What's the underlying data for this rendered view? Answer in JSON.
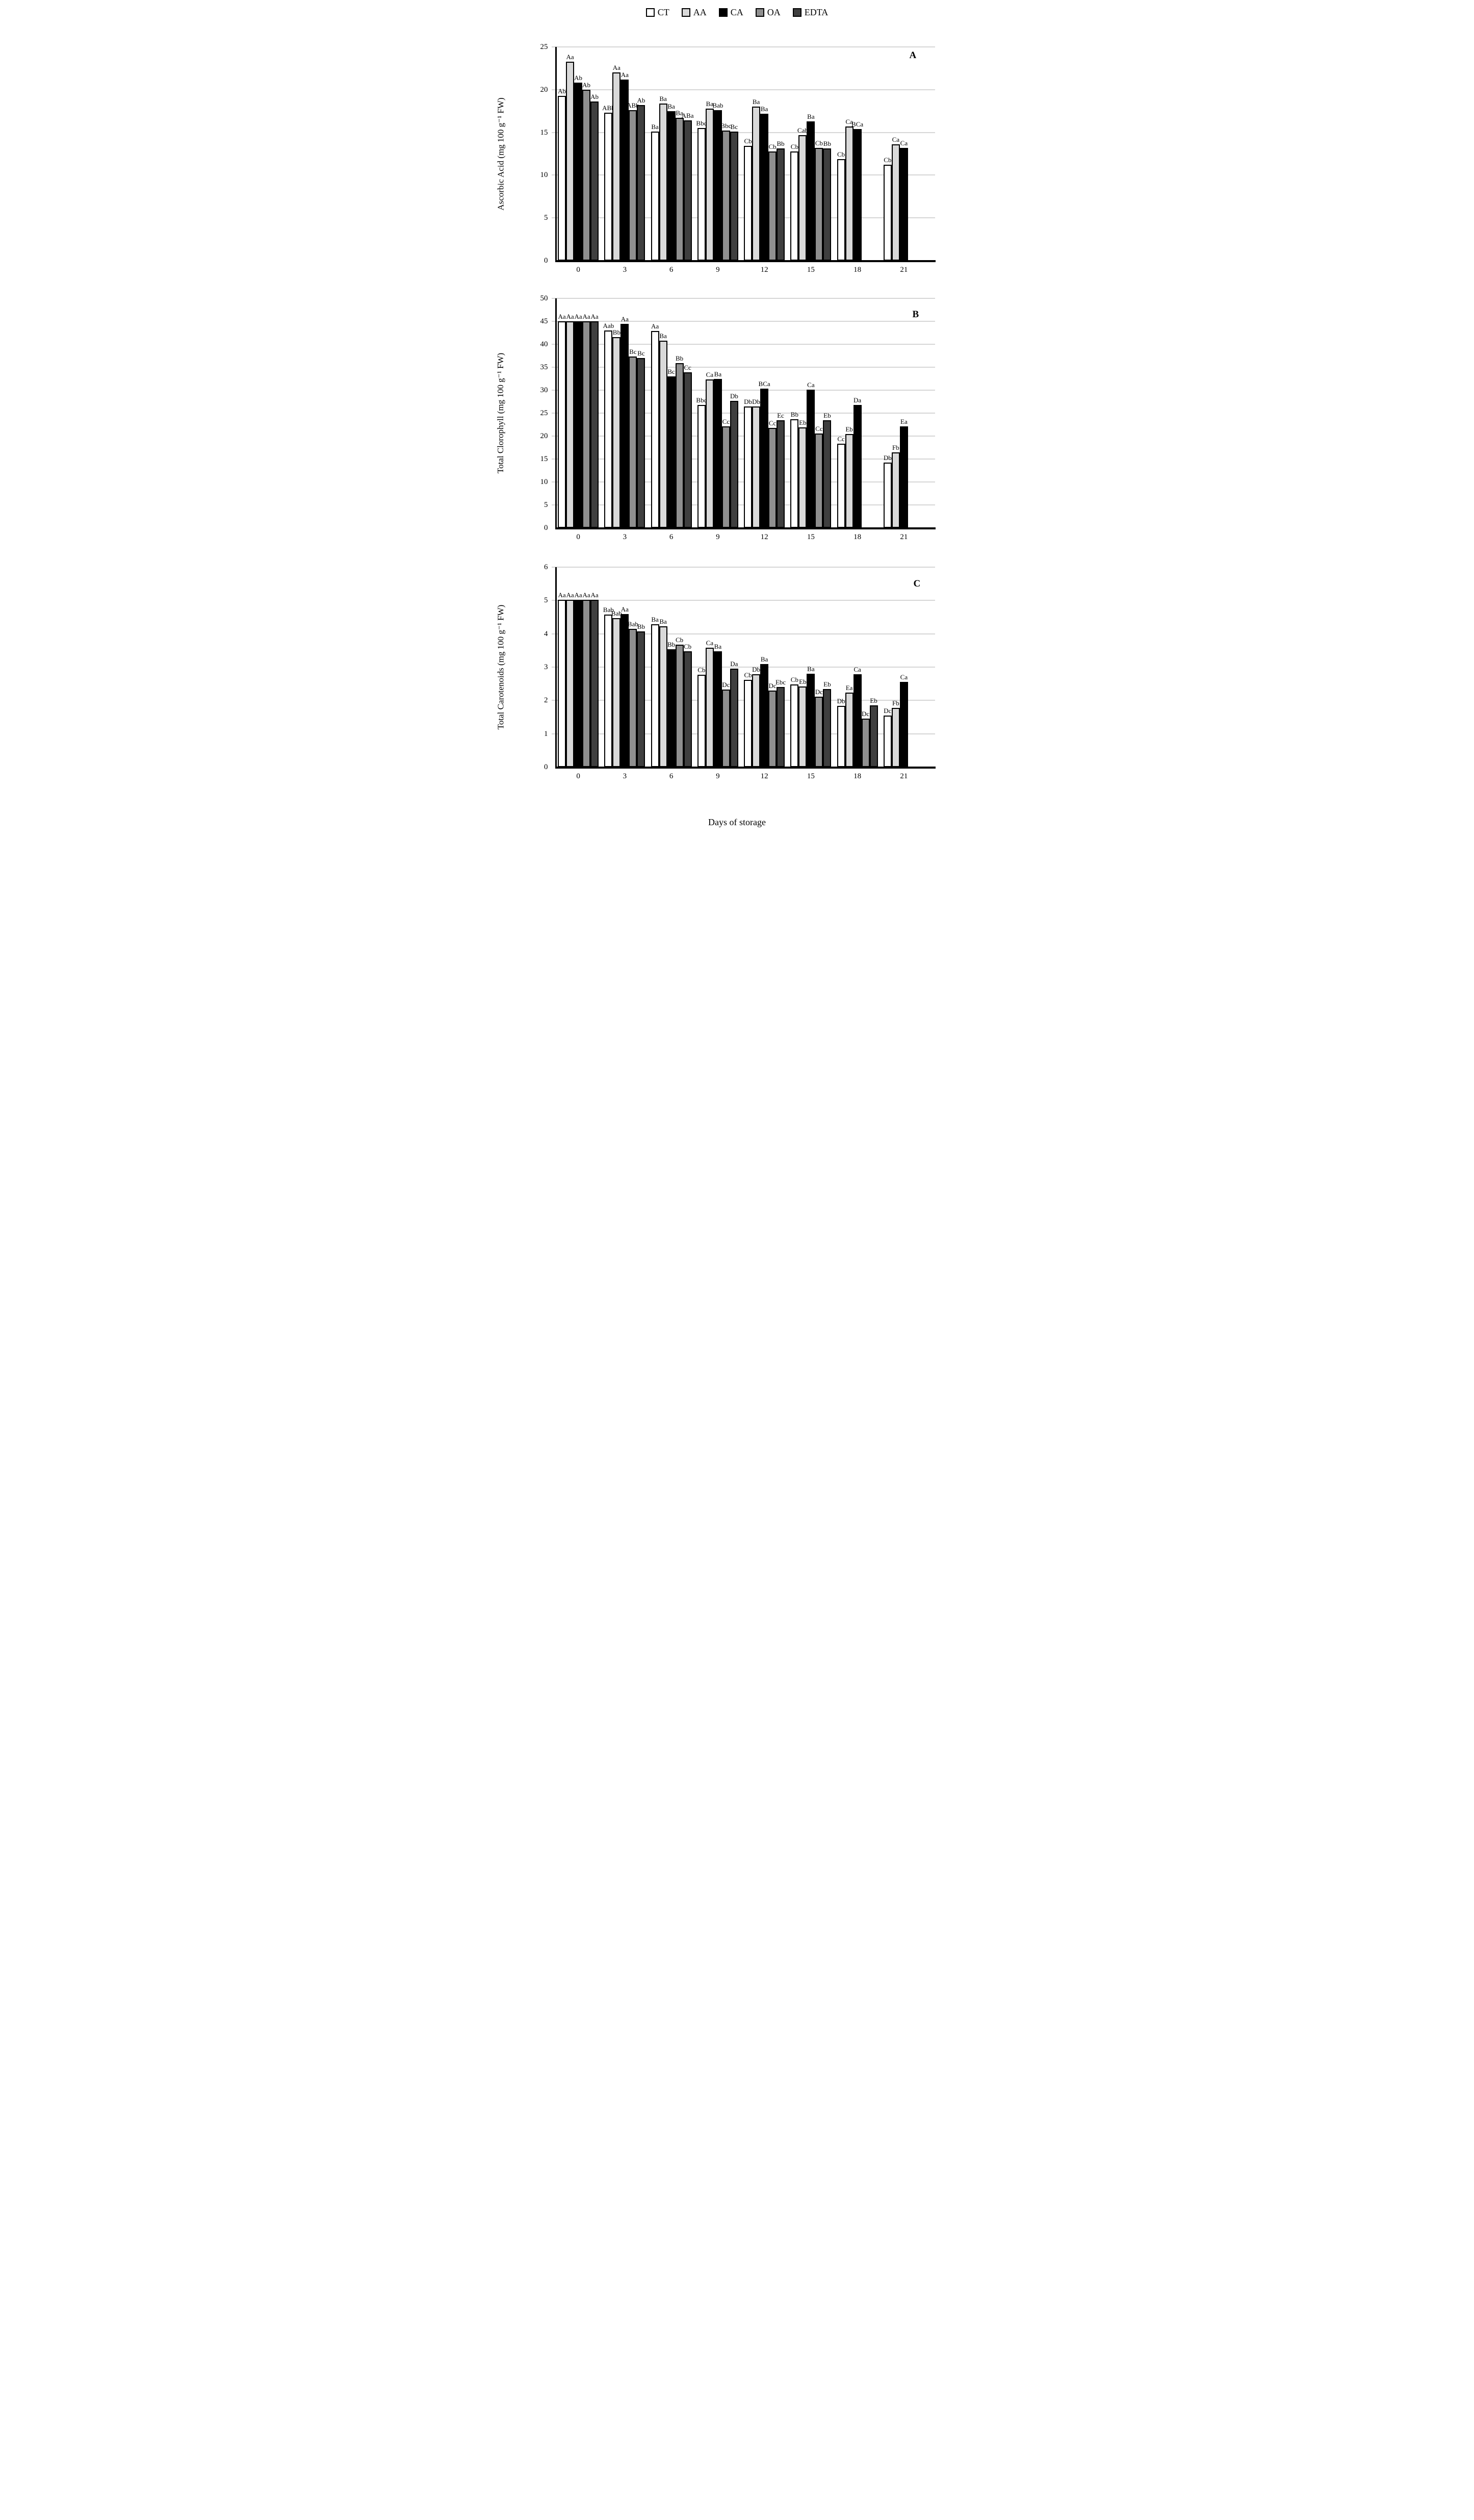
{
  "x_axis_title": "Days of storage",
  "legend": {
    "position": "top",
    "items": [
      {
        "label": "CT",
        "color": "#ffffff"
      },
      {
        "label": "AA",
        "color": "#d9d9d9"
      },
      {
        "label": "CA",
        "color": "#000000"
      },
      {
        "label": "OA",
        "color": "#8f8f8f"
      },
      {
        "label": "EDTA",
        "color": "#3f3f3f"
      }
    ]
  },
  "chart_data": [
    {
      "type": "bar",
      "panel_label": "A",
      "title": "",
      "ylabel": "Ascorbic Acid (mg 100 g⁻¹ FW)",
      "xlabel": "Days of storage",
      "ylim": [
        0,
        25
      ],
      "ytick_step": 5,
      "yticks": [
        0,
        5,
        10,
        15,
        20,
        25
      ],
      "grid": true,
      "categories": [
        0,
        3,
        6,
        9,
        12,
        15,
        18,
        21
      ],
      "series": [
        {
          "name": "CT",
          "color": "#ffffff",
          "values": [
            19.3,
            17.3,
            15.1,
            15.5,
            13.4,
            12.8,
            11.9,
            11.2
          ],
          "labels": [
            "Ab",
            "ABb",
            "Ba",
            "Bbc",
            "Cb",
            "Cb",
            "Cb",
            "Cb"
          ]
        },
        {
          "name": "AA",
          "color": "#d9d9d9",
          "values": [
            23.3,
            22.0,
            18.4,
            17.8,
            18.0,
            14.7,
            15.7,
            13.6
          ],
          "labels": [
            "Aa",
            "Aa",
            "Ba",
            "Ba",
            "Ba",
            "Cab",
            "Ca",
            "Ca"
          ]
        },
        {
          "name": "CA",
          "color": "#000000",
          "values": [
            20.8,
            21.2,
            17.5,
            17.6,
            17.2,
            16.3,
            15.4,
            13.2
          ],
          "labels": [
            "Ab",
            "Aa",
            "Ba",
            "Bab",
            "Ba",
            "Ba",
            "BCa",
            "Ca"
          ]
        },
        {
          "name": "OA",
          "color": "#8f8f8f",
          "values": [
            20.0,
            17.6,
            16.7,
            15.2,
            12.8,
            13.2,
            null,
            null
          ],
          "labels": [
            "Ab",
            "ABb",
            "Ba",
            "Bbc",
            "Cb",
            "Cb",
            "",
            ""
          ]
        },
        {
          "name": "EDTA",
          "color": "#3f3f3f",
          "values": [
            18.6,
            18.2,
            16.4,
            15.1,
            13.1,
            13.1,
            null,
            null
          ],
          "labels": [
            "Ab",
            "Ab",
            "ABa",
            "Bc",
            "Bb",
            "Bb",
            "",
            ""
          ]
        }
      ]
    },
    {
      "type": "bar",
      "panel_label": "B",
      "title": "",
      "ylabel": "Total Clorophyll (mg 100 g⁻¹ FW)",
      "xlabel": "Days of storage",
      "ylim": [
        0,
        50
      ],
      "ytick_step": 5,
      "yticks": [
        0,
        5,
        10,
        15,
        20,
        25,
        30,
        35,
        40,
        45,
        50
      ],
      "grid": true,
      "categories": [
        0,
        3,
        6,
        9,
        12,
        15,
        18,
        21
      ],
      "series": [
        {
          "name": "CT",
          "color": "#ffffff",
          "values": [
            45.0,
            43.0,
            42.9,
            26.8,
            26.5,
            23.7,
            18.3,
            14.2
          ],
          "labels": [
            "Aa",
            "Aab",
            "Aa",
            "Bbc",
            "Db",
            "Bb",
            "Cc",
            "Db"
          ]
        },
        {
          "name": "AA",
          "color": "#d9d9d9",
          "values": [
            45.0,
            41.6,
            40.8,
            32.3,
            26.4,
            21.9,
            20.4,
            16.5
          ],
          "labels": [
            "Aa",
            "Bb",
            "Ba",
            "Ca",
            "Db",
            "Eb",
            "Eb",
            "Fb"
          ]
        },
        {
          "name": "CA",
          "color": "#000000",
          "values": [
            45.0,
            44.4,
            33.0,
            32.4,
            30.3,
            30.1,
            26.8,
            22.1
          ],
          "labels": [
            "Aa",
            "Aa",
            "Bc",
            "Ba",
            "BCa",
            "Ca",
            "Da",
            "Ea"
          ]
        },
        {
          "name": "OA",
          "color": "#8f8f8f",
          "values": [
            45.0,
            37.3,
            35.9,
            22.1,
            21.8,
            20.6,
            null,
            null
          ],
          "labels": [
            "Aa",
            "Bc",
            "Bb",
            "Cc",
            "Cc",
            "Cc",
            "",
            ""
          ]
        },
        {
          "name": "EDTA",
          "color": "#3f3f3f",
          "values": [
            45.0,
            37.0,
            33.9,
            27.7,
            23.5,
            23.4,
            null,
            null
          ],
          "labels": [
            "Aa",
            "Bc",
            "Cc",
            "Db",
            "Ec",
            "Eb",
            "",
            ""
          ]
        }
      ]
    },
    {
      "type": "bar",
      "panel_label": "C",
      "title": "",
      "ylabel": "Total Carotenoids (mg 100 g⁻¹ FW)",
      "xlabel": "Days of storage",
      "ylim": [
        0,
        6
      ],
      "ytick_step": 1,
      "yticks": [
        0,
        1,
        2,
        3,
        4,
        5,
        6
      ],
      "grid": true,
      "categories": [
        0,
        3,
        6,
        9,
        12,
        15,
        18,
        21
      ],
      "series": [
        {
          "name": "CT",
          "color": "#ffffff",
          "values": [
            5.02,
            4.57,
            4.28,
            2.77,
            2.62,
            2.48,
            1.83,
            1.55
          ],
          "labels": [
            "Aa",
            "Bab",
            "Ba",
            "Cb",
            "Cb",
            "Cb",
            "Db",
            "Dc"
          ]
        },
        {
          "name": "AA",
          "color": "#d9d9d9",
          "values": [
            5.02,
            4.47,
            4.22,
            3.58,
            2.78,
            2.42,
            2.23,
            1.78
          ],
          "labels": [
            "Aa",
            "Bab",
            "Ba",
            "Ca",
            "Db",
            "Eb",
            "Ea",
            "Fb"
          ]
        },
        {
          "name": "CA",
          "color": "#000000",
          "values": [
            5.02,
            4.6,
            3.53,
            3.47,
            3.1,
            2.8,
            2.78,
            2.55
          ],
          "labels": [
            "Aa",
            "Aa",
            "Bb",
            "Ba",
            "Ba",
            "Ba",
            "Ca",
            "Ca"
          ]
        },
        {
          "name": "OA",
          "color": "#8f8f8f",
          "values": [
            5.02,
            4.15,
            3.68,
            2.32,
            2.3,
            2.12,
            1.45,
            null
          ],
          "labels": [
            "Aa",
            "Bab",
            "Cb",
            "Dc",
            "Dc",
            "Dc",
            "Dc",
            ""
          ]
        },
        {
          "name": "EDTA",
          "color": "#3f3f3f",
          "values": [
            5.02,
            4.07,
            3.48,
            2.95,
            2.4,
            2.35,
            1.85,
            null
          ],
          "labels": [
            "Aa",
            "Bb",
            "Cb",
            "Da",
            "Ebc",
            "Eb",
            "Eb",
            ""
          ]
        }
      ]
    }
  ]
}
